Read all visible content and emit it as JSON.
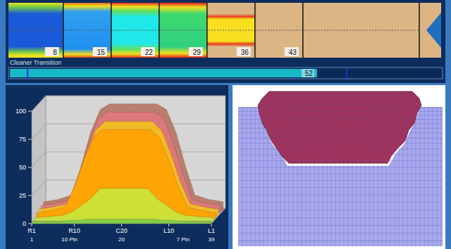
{
  "lane_strip": {
    "xlim": [
      0,
      60
    ],
    "distances": [
      8,
      15,
      22,
      29,
      36,
      43
    ]
  },
  "cleaner_transition": {
    "title": "Cleaner Transition",
    "lim": [
      0,
      73
    ],
    "value": 52,
    "markers": [
      3,
      57
    ]
  },
  "chart_data": {
    "type": "area",
    "x": [
      1,
      4,
      7,
      9,
      11,
      13,
      15,
      20,
      25,
      27,
      29,
      31,
      33,
      36,
      39
    ],
    "xlim": [
      1,
      39
    ],
    "xticks": [
      {
        "value": 1,
        "label": "R1"
      },
      {
        "value": 10,
        "label": "R10"
      },
      {
        "value": 20,
        "label": "C20"
      },
      {
        "value": 30,
        "label": "L10"
      },
      {
        "value": 39,
        "label": "L1"
      }
    ],
    "ylim": [
      0,
      100
    ],
    "yticks": [
      0,
      25,
      50,
      75,
      100
    ],
    "grid": true,
    "annotations": [
      {
        "text": "1",
        "x": 1
      },
      {
        "text": "10 Pin",
        "x": 9
      },
      {
        "text": "20",
        "x": 20
      },
      {
        "text": "7 Pin",
        "x": 33
      },
      {
        "text": "39",
        "x": 39
      }
    ],
    "series": [
      {
        "color": "#b5725e",
        "values": [
          8,
          10,
          14,
          40,
          70,
          90,
          95,
          95,
          95,
          90,
          70,
          40,
          14,
          10,
          8
        ]
      },
      {
        "color": "#e0787e",
        "values": [
          7,
          9,
          12,
          35,
          62,
          84,
          90,
          90,
          90,
          84,
          62,
          35,
          12,
          9,
          7
        ]
      },
      {
        "color": "#f5c21a",
        "values": [
          6,
          8,
          11,
          30,
          55,
          76,
          84,
          84,
          84,
          76,
          55,
          30,
          11,
          8,
          6
        ]
      },
      {
        "color": "#ffa000",
        "values": [
          5,
          7,
          10,
          28,
          52,
          72,
          79,
          79,
          79,
          72,
          52,
          28,
          10,
          7,
          5
        ]
      },
      {
        "color": "#c6e83a",
        "values": [
          3,
          4,
          5,
          8,
          14,
          20,
          29,
          29,
          29,
          20,
          14,
          8,
          5,
          4,
          3
        ]
      },
      {
        "color": "#7ccf3a",
        "values": [
          2,
          2,
          2,
          3,
          3,
          4,
          4,
          4,
          4,
          4,
          3,
          3,
          2,
          2,
          2
        ]
      }
    ]
  }
}
